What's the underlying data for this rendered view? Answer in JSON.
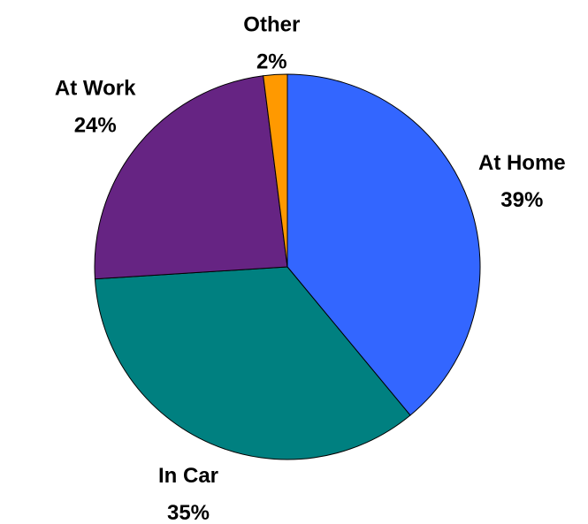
{
  "chart_data": {
    "type": "pie",
    "categories": [
      "At Home",
      "In Car",
      "At Work",
      "Other"
    ],
    "values": [
      39,
      35,
      24,
      2
    ],
    "value_labels": [
      "39%",
      "35%",
      "24%",
      "2%"
    ],
    "colors": [
      "#3366ff",
      "#008080",
      "#662483",
      "#ff9900"
    ]
  }
}
